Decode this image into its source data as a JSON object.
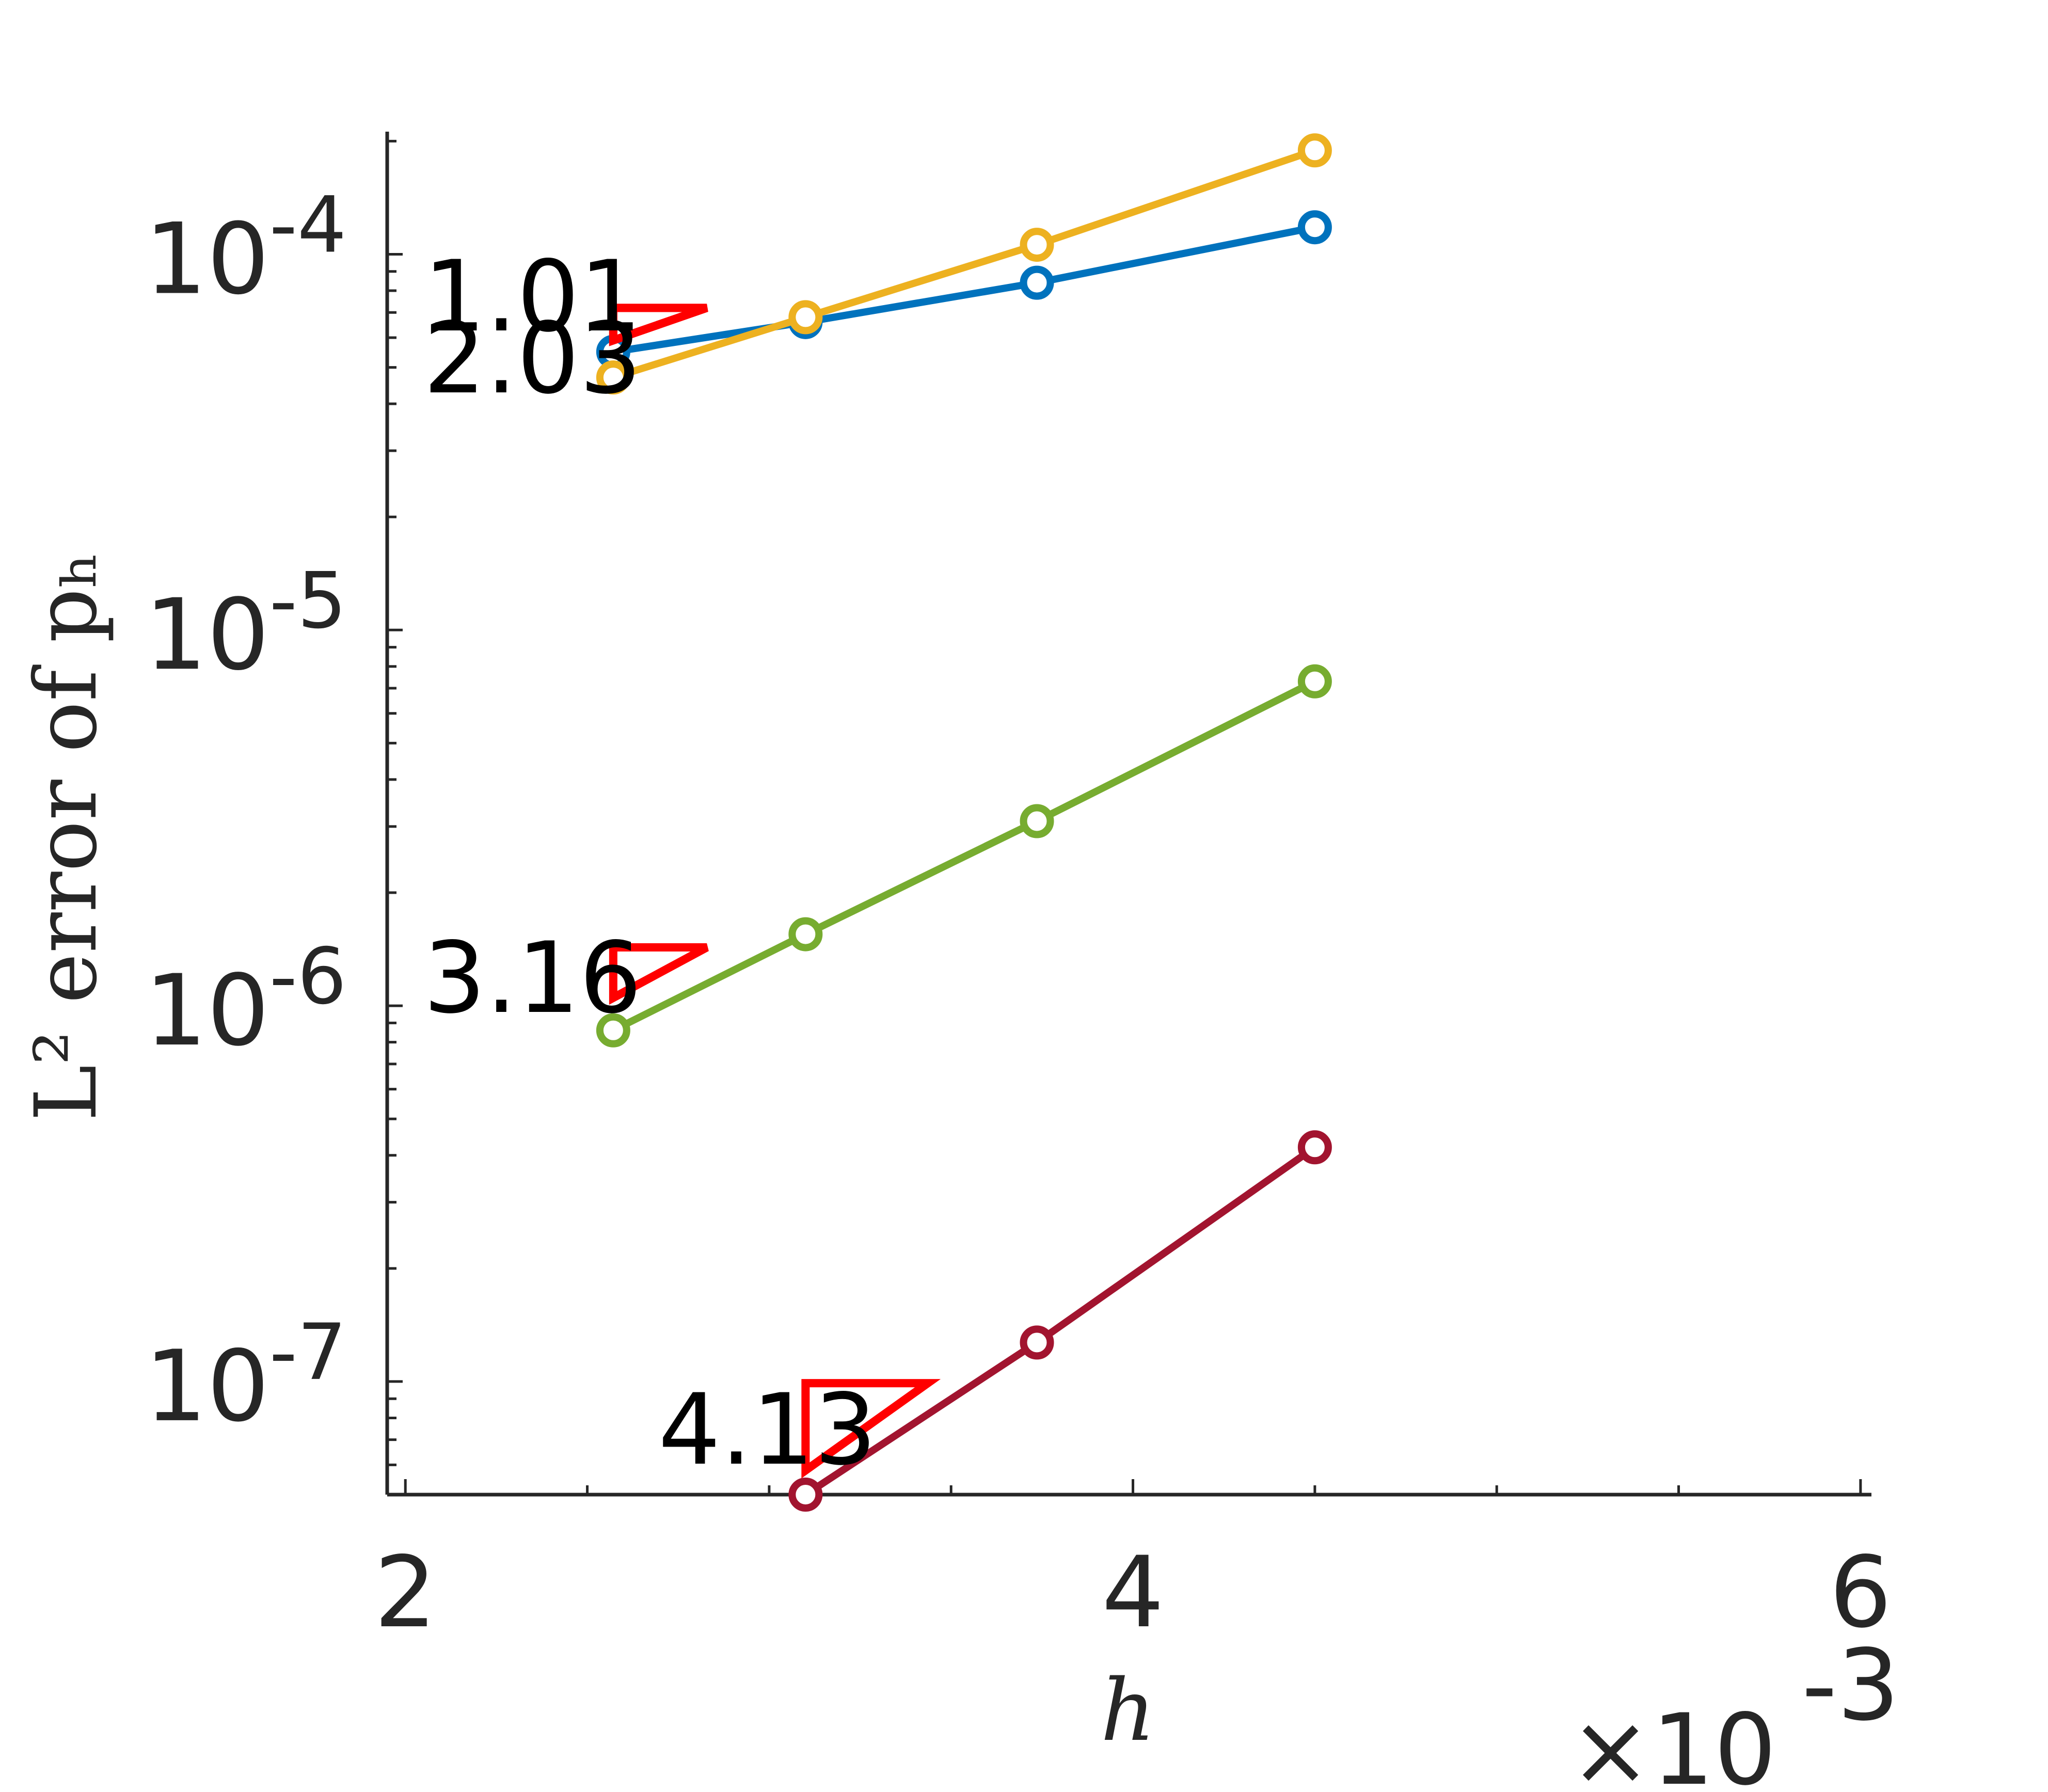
{
  "chart_data": {
    "type": "line",
    "title": "",
    "xlabel": "h",
    "ylabel": "L² error of pₕ",
    "x_scale": "linear",
    "y_scale": "log",
    "xlim": [
      0.00195,
      0.00603
    ],
    "ylim": [
      5e-08,
      0.000212
    ],
    "x_ticks": [
      0.002,
      0.004,
      0.006
    ],
    "x_tick_labels": [
      "2",
      "4",
      "6"
    ],
    "x_exponent_label": "×10",
    "x_exponent_power": "-3",
    "y_ticks": [
      1e-07,
      1e-06,
      1e-05,
      0.0001
    ],
    "y_tick_mantissa": "10",
    "y_tick_powers": [
      "-7",
      "-6",
      "-5",
      "-4"
    ],
    "grid": false,
    "legend": "none",
    "series": [
      {
        "color": "#0072BD",
        "marker": "circle",
        "x": [
          0.0025714,
          0.0031,
          0.003736,
          0.0045
        ],
        "y": [
          5.5e-05,
          6.6e-05,
          8.4e-05,
          0.000118
        ]
      },
      {
        "color": "#EDB120",
        "marker": "circle",
        "x": [
          0.0025714,
          0.0031,
          0.003736,
          0.0045
        ],
        "y": [
          4.7e-05,
          6.8e-05,
          0.000106,
          0.000189
        ]
      },
      {
        "color": "#77AC30",
        "marker": "circle",
        "x": [
          0.0025714,
          0.0031,
          0.003736,
          0.0045
        ],
        "y": [
          8.6e-07,
          1.55e-06,
          3.1e-06,
          7.3e-06
        ]
      },
      {
        "color": "#A2142F",
        "marker": "circle",
        "x": [
          0.0031,
          0.003736,
          0.0045
        ],
        "y": [
          5e-08,
          1.27e-07,
          4.2e-07
        ]
      }
    ],
    "slope_triangles": [
      {
        "label": "1.01",
        "color": "#FF0000",
        "x0": 0.0025714,
        "x1": 0.0028286,
        "y_top": 7.2e-05,
        "y_bottom": 5.9e-05
      },
      {
        "label": "2.03",
        "color": "#FF0000",
        "x0": 0.0025714,
        "x1": 0.0028286,
        "y_top": 7.2e-05,
        "y_bottom": 5.9e-05
      },
      {
        "label": "3.16",
        "color": "#FF0000",
        "x0": 0.0025714,
        "x1": 0.0028286,
        "y_top": 1.43e-06,
        "y_bottom": 1.05e-06
      },
      {
        "label": "4.13",
        "color": "#FF0000",
        "x0": 0.0031,
        "x1": 0.003436,
        "y_top": 9.9e-08,
        "y_bottom": 5.8e-08
      }
    ]
  }
}
